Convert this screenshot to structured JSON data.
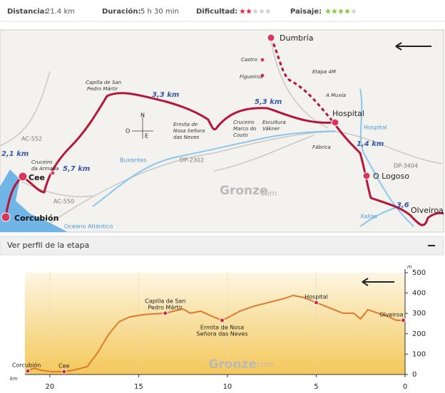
{
  "header": {
    "stats": [
      {
        "label": "Distancia:",
        "value": "21.4 km"
      },
      {
        "label": "Duración:",
        "value": "5 h 30 min"
      },
      {
        "label": "Dificultad:",
        "rating": 2,
        "max": 5,
        "color": "#e0304a"
      },
      {
        "label": "Paisaje:",
        "rating": 4,
        "max": 5,
        "color": "#8cc63f"
      }
    ]
  },
  "map": {
    "labels": [
      "Dumbría",
      "Castro",
      "Figueiroa",
      "Etapa 4M",
      "A Muxía",
      "Hospital",
      "Hospital",
      "Capilla de San",
      "Pedro Mártir",
      "3,3 km",
      "Ermita de",
      "Nosa Señora",
      "das Neves",
      "5,3 km",
      "Cruceiro",
      "Marco do",
      "Couto",
      "Escultura",
      "Vákner",
      "Fábrica",
      "1,4 km",
      "DP-3404",
      "O Logoso",
      "3,6",
      "Olveiroa",
      "Xallas",
      "AC-552",
      "2,1 km",
      "Cruceiro",
      "da Armada",
      "5,7 km",
      "Cee",
      "Buxantes",
      "DP-2302",
      "AC-550",
      "Corcubión",
      "Océano Atlántico",
      "Gronze",
      "com",
      "N",
      "O",
      "E"
    ]
  },
  "profile_toggle": "Ver perfil de la etapa",
  "chart_data": {
    "type": "area",
    "x": [
      21.24,
      20.9,
      20.5,
      19.9,
      19.2,
      18.7,
      17.9,
      17.3,
      16.7,
      16.1,
      15.5,
      14.7,
      13.5,
      12.5,
      12.1,
      11.5,
      10.9,
      10.3,
      9.9,
      9.3,
      8.5,
      7.7,
      6.9,
      6.3,
      5.7,
      5.0,
      4.3,
      3.5,
      2.9,
      2.5,
      2.1,
      1.5,
      0.9,
      0.5,
      0.1
    ],
    "series": [
      {
        "color": "#e07a2a",
        "values": [
          17,
          31,
          21,
          14,
          14,
          21,
          38,
          108,
          196,
          259,
          283,
          294,
          301,
          322,
          301,
          311,
          287,
          266,
          283,
          311,
          336,
          353,
          371,
          388,
          378,
          353,
          329,
          301,
          301,
          273,
          318,
          301,
          283,
          266,
          266
        ]
      }
    ],
    "annotations": [
      {
        "label": [
          "Corcubión"
        ],
        "x": 21.24,
        "y": 17
      },
      {
        "label": [
          "Cee"
        ],
        "x": 19.2,
        "y": 14
      },
      {
        "label": [
          "Capilla de San",
          "Pedro Mártir"
        ],
        "x": 13.5,
        "y": 301
      },
      {
        "label": [
          "Ermita de Nosa",
          "Señora das Neves"
        ],
        "x": 10.3,
        "y": 266
      },
      {
        "label": [
          "Hospital"
        ],
        "x": 5.0,
        "y": 353
      },
      {
        "label": [
          "Olveiroa"
        ],
        "x": 0.1,
        "y": 266
      }
    ],
    "xlim": [
      21.4,
      0
    ],
    "xticks": [
      20,
      15,
      10,
      5,
      0
    ],
    "x_label": "km",
    "ylim": [
      0,
      500
    ],
    "yticks": [
      0,
      100,
      200,
      300,
      400,
      500
    ],
    "y_label": "m",
    "watermark": "Gronze",
    "watermark_suffix": "com",
    "grid": true
  }
}
